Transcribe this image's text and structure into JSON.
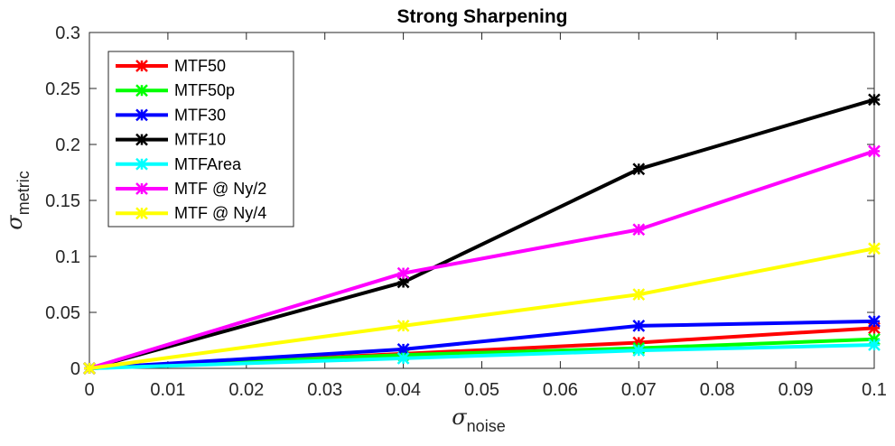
{
  "chart_data": {
    "type": "line",
    "title": "Strong Sharpening",
    "xlabel": {
      "symbol": "σ",
      "subscript": "noise"
    },
    "ylabel": {
      "symbol": "σ",
      "subscript": "metric"
    },
    "xlim": [
      0,
      0.1
    ],
    "ylim": [
      0,
      0.3
    ],
    "x_ticks": [
      0,
      0.01,
      0.02,
      0.03,
      0.04,
      0.05,
      0.06,
      0.07,
      0.08,
      0.09,
      0.1
    ],
    "x_tick_labels": [
      "0",
      "0.01",
      "0.02",
      "0.03",
      "0.04",
      "0.05",
      "0.06",
      "0.07",
      "0.08",
      "0.09",
      "0.1"
    ],
    "y_ticks": [
      0,
      0.05,
      0.1,
      0.15,
      0.2,
      0.25,
      0.3
    ],
    "y_tick_labels": [
      "0",
      "0.05",
      "0.1",
      "0.15",
      "0.2",
      "0.25",
      "0.3"
    ],
    "grid": false,
    "legend_position": "top-left",
    "x": [
      0,
      0.04,
      0.07,
      0.1
    ],
    "series": [
      {
        "name": "MTF50",
        "color": "#ff0000",
        "values": [
          0,
          0.013,
          0.023,
          0.036
        ]
      },
      {
        "name": "MTF50p",
        "color": "#00ff00",
        "values": [
          0,
          0.012,
          0.018,
          0.026
        ]
      },
      {
        "name": "MTF30",
        "color": "#0000ff",
        "values": [
          0,
          0.017,
          0.038,
          0.042
        ]
      },
      {
        "name": "MTF10",
        "color": "#000000",
        "values": [
          0,
          0.077,
          0.178,
          0.24
        ]
      },
      {
        "name": "MTFArea",
        "color": "#00ffff",
        "values": [
          0,
          0.009,
          0.016,
          0.021
        ]
      },
      {
        "name": "MTF @ Ny/2",
        "color": "#ff00ff",
        "values": [
          0,
          0.085,
          0.124,
          0.194
        ]
      },
      {
        "name": "MTF @ Ny/4",
        "color": "#ffff00",
        "values": [
          0,
          0.038,
          0.066,
          0.107
        ]
      }
    ]
  }
}
